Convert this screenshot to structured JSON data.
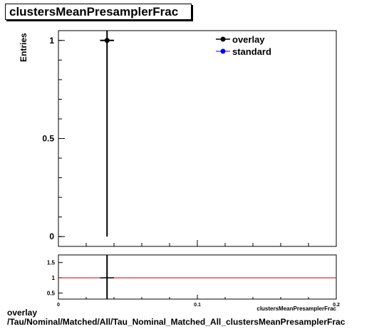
{
  "title": "clustersMeanPresamplerFrac",
  "caption_line1": "overlay",
  "caption_line2": "/Tau/Nominal/Matched/All/Tau_Nominal_Matched_All_clustersMeanPresamplerFrac",
  "colors": {
    "overlay": "#000000",
    "standard": "#0000ff",
    "ratio_line": "#cc0000"
  },
  "chart_data": [
    {
      "type": "scatter",
      "title": "clustersMeanPresamplerFrac",
      "xlabel": "clustersMeanPresamplerFrac",
      "ylabel": "Entries",
      "xlim": [
        0,
        0.2
      ],
      "ylim": [
        -0.05,
        1.05
      ],
      "y_ticks": [
        {
          "value": 0,
          "label": "0"
        },
        {
          "value": 0.5,
          "label": "0.5"
        },
        {
          "value": 1,
          "label": "1"
        }
      ],
      "legend": {
        "placement": "top-right"
      },
      "series": [
        {
          "name": "overlay",
          "color": "#000000",
          "points": [
            {
              "x": 0.035,
              "y": 1,
              "xerr": 0.005,
              "yerr": 1
            }
          ]
        },
        {
          "name": "standard",
          "color": "#0000ff",
          "points": []
        }
      ],
      "grid": false
    },
    {
      "type": "scatter",
      "xlabel": "clustersMeanPresamplerFrac",
      "xlim": [
        0,
        0.2
      ],
      "ylim": [
        0.3,
        1.75
      ],
      "x_ticks": [
        {
          "value": 0,
          "label": "0"
        },
        {
          "value": 0.1,
          "label": "0.1"
        },
        {
          "value": 0.2,
          "label": "0.2"
        }
      ],
      "y_ticks": [
        {
          "value": 0.5,
          "label": "0.5"
        },
        {
          "value": 1,
          "label": "1"
        },
        {
          "value": 1.5,
          "label": "1.5"
        }
      ],
      "reference_line": 1,
      "series": [
        {
          "color": "#000000",
          "points": [
            {
              "x": 0.035,
              "y": 1,
              "xerr": 0.005
            }
          ]
        }
      ],
      "grid": false
    }
  ]
}
